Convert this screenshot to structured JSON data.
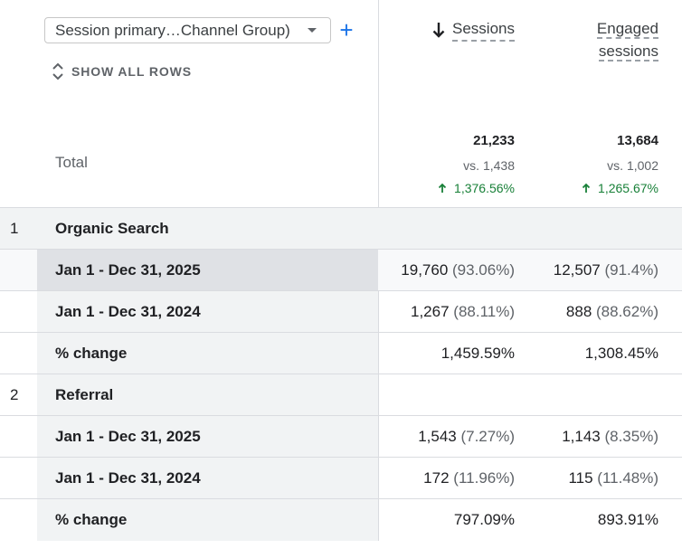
{
  "dimension": {
    "selected": "Session primary…Channel Group)",
    "add_label": "+",
    "show_all_rows": "SHOW ALL ROWS"
  },
  "metrics": [
    {
      "label": "Sessions",
      "sorted": "descending"
    },
    {
      "label_line1": "Engaged",
      "label_line2": "sessions"
    }
  ],
  "totals": {
    "label": "Total",
    "sessions": {
      "value": "21,233",
      "vs": "vs. 1,438",
      "change": "1,376.56%"
    },
    "engaged": {
      "value": "13,684",
      "vs": "vs. 1,002",
      "change": "1,265.67%"
    }
  },
  "groups": [
    {
      "index": "1",
      "name": "Organic Search",
      "rows": [
        {
          "label": "Jan 1 - Dec 31, 2025",
          "sessions": "19,760",
          "sessions_pct": "(93.06%)",
          "engaged": "12,507",
          "engaged_pct": "(91.4%)"
        },
        {
          "label": "Jan 1 - Dec 31, 2024",
          "sessions": "1,267",
          "sessions_pct": "(88.11%)",
          "engaged": "888",
          "engaged_pct": "(88.62%)"
        },
        {
          "label": "% change",
          "sessions": "1,459.59%",
          "engaged": "1,308.45%"
        }
      ]
    },
    {
      "index": "2",
      "name": "Referral",
      "rows": [
        {
          "label": "Jan 1 - Dec 31, 2025",
          "sessions": "1,543",
          "sessions_pct": "(7.27%)",
          "engaged": "1,143",
          "engaged_pct": "(8.35%)"
        },
        {
          "label": "Jan 1 - Dec 31, 2024",
          "sessions": "172",
          "sessions_pct": "(11.96%)",
          "engaged": "115",
          "engaged_pct": "(11.48%)"
        },
        {
          "label": "% change",
          "sessions": "797.09%",
          "engaged": "893.91%"
        }
      ]
    }
  ],
  "icons": {
    "sort": "arrow-down-icon",
    "expand": "unfold-icon",
    "trend": "arrow-up-icon"
  },
  "colors": {
    "accent": "#1a73e8",
    "positive": "#188038",
    "row_bg": "#f1f3f4",
    "row_selected": "#dfe1e5"
  }
}
